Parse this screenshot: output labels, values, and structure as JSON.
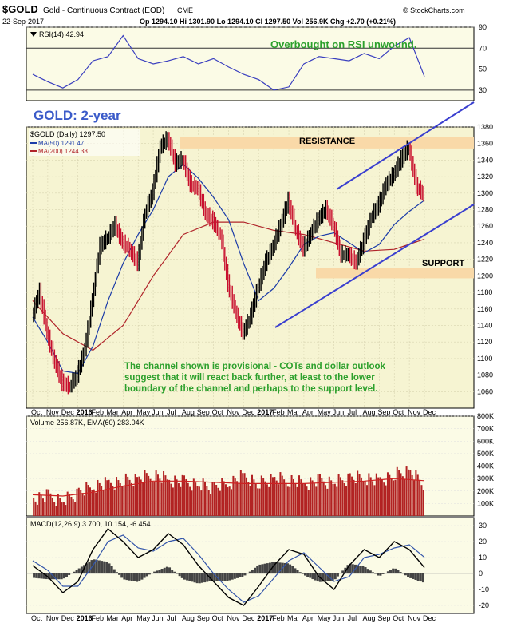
{
  "header": {
    "symbol": "$GOLD",
    "name": "Gold - Continuous Contract (EOD)",
    "exchange": "CME",
    "date": "22-Sep-2017",
    "quote": "Op 1294.10  Hi 1301.90  Lo 1294.10  Cl 1297.50  Vol 256.9K  Chg +2.70 (+0.21%)",
    "source": "© StockCharts.com",
    "triangle_icon": "up-triangle-icon"
  },
  "annotations": {
    "rsi_comment": "Overbought on RSI unwound.",
    "title": "GOLD: 2-year",
    "resistance": "RESISTANCE",
    "support": "SUPPORT",
    "channel_note": [
      "The channel shown is provisional - COTs and dollar outlook",
      "suggest that it will react back further, at least to the lower",
      "boundary of the channel and perhaps to the support level."
    ]
  },
  "colors": {
    "panel_bg": "#FBFBE6",
    "price_bg": "#F6F4D2",
    "band": "#F9D9A8",
    "price_up": "#000000",
    "price_down": "#C8102E",
    "ma50": "#1C3CA8",
    "ma200": "#B0242A",
    "channel": "#3A3FCF",
    "annotation_green": "#2CA02C",
    "title_blue": "#3B5BC9",
    "volume_bar": "#B22222",
    "volume_ema": "#CC2222",
    "macd_line": "#000000",
    "macd_signal": "#3355AA",
    "macd_hist": "#444444",
    "rsi_line": "#3A3FBF"
  },
  "chart_data": [
    {
      "type": "line",
      "panel": "rsi",
      "legend": "RSI(14) 42.94",
      "ylim": [
        20,
        90
      ],
      "yticks": [
        30,
        50,
        70,
        90
      ],
      "reference_lines": [
        30,
        70
      ],
      "series": [
        {
          "name": "RSI(14)",
          "x": [
            0,
            4,
            8,
            12,
            16,
            20,
            24,
            28,
            32,
            36,
            40,
            44,
            48,
            52,
            56,
            60,
            64,
            68,
            72,
            76,
            80,
            84,
            88,
            92,
            96,
            100,
            104
          ],
          "y": [
            45,
            38,
            32,
            40,
            58,
            62,
            82,
            60,
            55,
            58,
            62,
            55,
            60,
            52,
            45,
            40,
            30,
            33,
            55,
            62,
            60,
            58,
            65,
            60,
            72,
            80,
            43
          ]
        }
      ]
    },
    {
      "type": "line",
      "panel": "price",
      "legend": [
        "$GOLD (Daily) 1297.50",
        "MA(50) 1291.47",
        "MA(200) 1244.38"
      ],
      "ylim": [
        1040,
        1380
      ],
      "yticks": [
        1060,
        1080,
        1100,
        1120,
        1140,
        1160,
        1180,
        1200,
        1220,
        1240,
        1260,
        1280,
        1300,
        1320,
        1340,
        1360,
        1380
      ],
      "x_axis": [
        "Oct",
        "Nov",
        "Dec",
        "2016",
        "Feb",
        "Mar",
        "Apr",
        "May",
        "Jun",
        "Jul",
        "Aug",
        "Sep",
        "Oct",
        "Nov",
        "Dec",
        "2017",
        "Feb",
        "Mar",
        "Apr",
        "May",
        "Jun",
        "Jul",
        "Aug",
        "Sep",
        "Oct",
        "Nov",
        "Dec"
      ],
      "series": [
        {
          "name": "$GOLD (Daily)",
          "x": [
            0,
            2,
            4,
            6,
            8,
            10,
            12,
            14,
            16,
            18,
            20,
            22,
            24,
            26,
            28,
            30,
            32,
            34,
            36,
            38,
            40,
            42,
            44,
            46,
            48,
            50,
            52,
            54,
            56,
            58,
            60,
            62,
            64,
            66,
            68,
            70,
            72,
            74,
            76,
            78,
            80,
            82,
            84,
            86,
            88,
            90,
            92,
            94,
            96,
            98,
            100,
            102,
            104
          ],
          "y": [
            1150,
            1180,
            1130,
            1095,
            1070,
            1065,
            1080,
            1110,
            1170,
            1235,
            1245,
            1260,
            1240,
            1230,
            1215,
            1275,
            1300,
            1355,
            1365,
            1335,
            1340,
            1310,
            1305,
            1275,
            1265,
            1250,
            1190,
            1155,
            1130,
            1150,
            1185,
            1215,
            1235,
            1260,
            1290,
            1255,
            1232,
            1250,
            1268,
            1280,
            1260,
            1225,
            1225,
            1215,
            1240,
            1270,
            1285,
            1310,
            1322,
            1340,
            1355,
            1308,
            1297.5
          ]
        },
        {
          "name": "MA(50)",
          "x": [
            0,
            4,
            8,
            12,
            16,
            20,
            24,
            28,
            32,
            36,
            40,
            44,
            48,
            52,
            56,
            60,
            64,
            68,
            72,
            76,
            80,
            84,
            88,
            92,
            96,
            100,
            104
          ],
          "y": [
            1150,
            1120,
            1085,
            1082,
            1115,
            1170,
            1215,
            1250,
            1280,
            1320,
            1335,
            1318,
            1295,
            1268,
            1215,
            1170,
            1185,
            1210,
            1238,
            1248,
            1252,
            1240,
            1228,
            1238,
            1262,
            1278,
            1291.47
          ]
        },
        {
          "name": "MA(200)",
          "x": [
            0,
            8,
            16,
            24,
            32,
            40,
            48,
            56,
            64,
            72,
            80,
            88,
            96,
            104
          ],
          "y": [
            1170,
            1130,
            1110,
            1140,
            1200,
            1250,
            1265,
            1265,
            1255,
            1250,
            1240,
            1230,
            1232,
            1244.38
          ]
        }
      ],
      "zones": [
        {
          "label": "RESISTANCE",
          "y": [
            1354,
            1368
          ]
        },
        {
          "label": "SUPPORT",
          "y": [
            1197,
            1210
          ]
        }
      ]
    },
    {
      "type": "bar",
      "panel": "volume",
      "legend": "Volume 256.87K, EMA(60) 283.04K",
      "ylim": [
        0,
        800
      ],
      "ytick_labels": [
        "100K",
        "200K",
        "300K",
        "400K",
        "500K",
        "600K",
        "700K",
        "800K"
      ],
      "series": [
        {
          "name": "Volume",
          "x": [
            0,
            4,
            8,
            12,
            16,
            20,
            24,
            28,
            32,
            36,
            40,
            44,
            48,
            52,
            56,
            60,
            64,
            68,
            72,
            76,
            80,
            84,
            88,
            92,
            96,
            100,
            104
          ],
          "y": [
            140,
            160,
            120,
            180,
            240,
            260,
            280,
            300,
            330,
            290,
            270,
            250,
            230,
            260,
            320,
            260,
            300,
            290,
            260,
            280,
            270,
            300,
            310,
            280,
            330,
            360,
            257
          ]
        },
        {
          "name": "EMA(60)",
          "x": [
            0,
            8,
            16,
            24,
            32,
            40,
            48,
            56,
            64,
            72,
            80,
            88,
            96,
            104
          ],
          "y": [
            170,
            160,
            190,
            240,
            280,
            280,
            270,
            260,
            260,
            260,
            270,
            280,
            300,
            283
          ]
        }
      ]
    },
    {
      "type": "line",
      "panel": "macd",
      "legend": "MACD(12,26,9) 3.700, 10.154, -6.454",
      "ylim": [
        -25,
        35
      ],
      "yticks": [
        -20,
        -10,
        0,
        10,
        20,
        30
      ],
      "x_axis": [
        "Oct",
        "Nov",
        "Dec",
        "2016",
        "Feb",
        "Mar",
        "Apr",
        "May",
        "Jun",
        "Jul",
        "Aug",
        "Sep",
        "Oct",
        "Nov",
        "Dec",
        "2017",
        "Feb",
        "Mar",
        "Apr",
        "May",
        "Jun",
        "Jul",
        "Aug",
        "Sep",
        "Oct",
        "Nov",
        "Dec"
      ],
      "series": [
        {
          "name": "MACD",
          "x": [
            0,
            4,
            8,
            12,
            16,
            20,
            24,
            28,
            32,
            36,
            40,
            44,
            48,
            52,
            56,
            60,
            64,
            68,
            72,
            76,
            80,
            84,
            88,
            92,
            96,
            100,
            104
          ],
          "y": [
            5,
            -2,
            -12,
            -5,
            15,
            28,
            20,
            10,
            15,
            25,
            18,
            5,
            -5,
            -15,
            -20,
            -8,
            5,
            15,
            12,
            -2,
            -10,
            5,
            15,
            10,
            20,
            15,
            3.7
          ]
        },
        {
          "name": "Signal",
          "x": [
            0,
            4,
            8,
            12,
            16,
            20,
            24,
            28,
            32,
            36,
            40,
            44,
            48,
            52,
            56,
            60,
            64,
            68,
            72,
            76,
            80,
            84,
            88,
            92,
            96,
            100,
            104
          ],
          "y": [
            8,
            2,
            -8,
            -8,
            5,
            20,
            24,
            16,
            14,
            20,
            22,
            12,
            0,
            -10,
            -18,
            -14,
            -3,
            8,
            13,
            4,
            -5,
            -2,
            10,
            12,
            16,
            18,
            10.154
          ]
        }
      ]
    }
  ]
}
